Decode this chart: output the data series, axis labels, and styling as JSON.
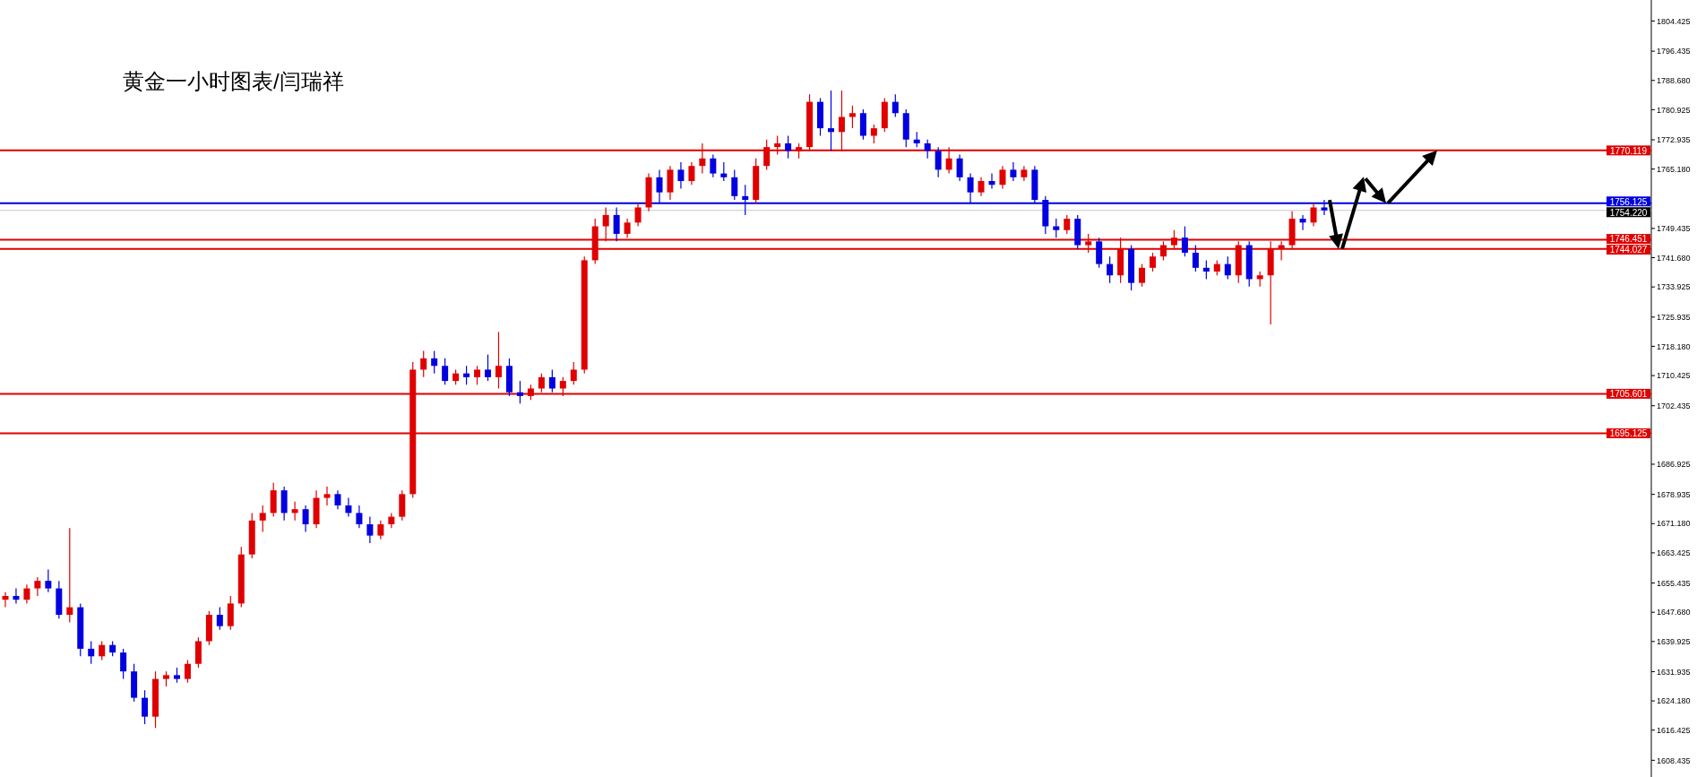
{
  "chart_data": {
    "type": "candlestick",
    "title": "黄金一小时图表/闫瑞祥",
    "categories": [
      null,
      null,
      null,
      null,
      null,
      null,
      null,
      null,
      null,
      null,
      null,
      null,
      null,
      null,
      null,
      null,
      null,
      null,
      null,
      null,
      null,
      null,
      null,
      null,
      null,
      null,
      null,
      null,
      null,
      null,
      null,
      null,
      null,
      null,
      null,
      null,
      null,
      null,
      null,
      null,
      null,
      null,
      null,
      null,
      null,
      null,
      null,
      null,
      null,
      null,
      null,
      null,
      null,
      null,
      null,
      null,
      null,
      null,
      null,
      null,
      null,
      null,
      null,
      null,
      null,
      null,
      null,
      null,
      null,
      null,
      null,
      null,
      null,
      null,
      null,
      null,
      null,
      null,
      null,
      null,
      null,
      null,
      null,
      null,
      null,
      null,
      null,
      null,
      null,
      null,
      null,
      null,
      null,
      null,
      null,
      null,
      null,
      null,
      null,
      null,
      null,
      null,
      null,
      null,
      null,
      null,
      null,
      null,
      null,
      null,
      null,
      null,
      null,
      null,
      null,
      null,
      null,
      null,
      null,
      null,
      null,
      null,
      null,
      null,
      null,
      null,
      null,
      null,
      null,
      null,
      null,
      null,
      null,
      null,
      null,
      null,
      null,
      null,
      null,
      null,
      null,
      null,
      null,
      null,
      null,
      null,
      null,
      null,
      null,
      null,
      null,
      null,
      null,
      null
    ],
    "legend": false,
    "ohlc": [
      [
        1651,
        1653,
        1649,
        1652
      ],
      [
        1652,
        1654,
        1650,
        1651
      ],
      [
        1651,
        1655,
        1650,
        1654
      ],
      [
        1654,
        1657,
        1652,
        1656
      ],
      [
        1656,
        1659,
        1653,
        1654
      ],
      [
        1654,
        1656,
        1646,
        1647
      ],
      [
        1647,
        1670,
        1645,
        1649
      ],
      [
        1649,
        1650,
        1636,
        1638
      ],
      [
        1638,
        1640,
        1634,
        1636
      ],
      [
        1636,
        1640,
        1635,
        1639
      ],
      [
        1639,
        1640,
        1636,
        1637
      ],
      [
        1637,
        1638,
        1630,
        1632
      ],
      [
        1632,
        1634,
        1624,
        1625
      ],
      [
        1625,
        1627,
        1618,
        1620
      ],
      [
        1620,
        1632,
        1617,
        1630
      ],
      [
        1630,
        1632,
        1628,
        1631
      ],
      [
        1631,
        1633,
        1629,
        1630
      ],
      [
        1630,
        1635,
        1629,
        1634
      ],
      [
        1634,
        1641,
        1633,
        1640
      ],
      [
        1640,
        1648,
        1639,
        1647
      ],
      [
        1647,
        1649,
        1643,
        1644
      ],
      [
        1644,
        1652,
        1643,
        1650
      ],
      [
        1650,
        1665,
        1649,
        1663
      ],
      [
        1663,
        1674,
        1662,
        1672
      ],
      [
        1672,
        1676,
        1669,
        1674
      ],
      [
        1674,
        1682,
        1673,
        1680
      ],
      [
        1680,
        1681,
        1672,
        1674
      ],
      [
        1674,
        1677,
        1672,
        1675
      ],
      [
        1675,
        1676,
        1669,
        1671
      ],
      [
        1671,
        1680,
        1670,
        1678
      ],
      [
        1678,
        1681,
        1676,
        1679
      ],
      [
        1679,
        1680,
        1675,
        1676
      ],
      [
        1676,
        1678,
        1673,
        1674
      ],
      [
        1674,
        1676,
        1670,
        1671
      ],
      [
        1671,
        1673,
        1666,
        1668
      ],
      [
        1668,
        1672,
        1667,
        1671
      ],
      [
        1671,
        1674,
        1670,
        1673
      ],
      [
        1673,
        1680,
        1672,
        1679
      ],
      [
        1679,
        1714,
        1678,
        1712
      ],
      [
        1712,
        1717,
        1710,
        1715
      ],
      [
        1715,
        1717,
        1711,
        1713
      ],
      [
        1713,
        1715,
        1708,
        1709
      ],
      [
        1709,
        1712,
        1708,
        1711
      ],
      [
        1711,
        1713,
        1708,
        1710
      ],
      [
        1710,
        1713,
        1708,
        1712
      ],
      [
        1712,
        1716,
        1709,
        1710
      ],
      [
        1710,
        1722,
        1707,
        1713
      ],
      [
        1713,
        1715,
        1705,
        1706
      ],
      [
        1706,
        1709,
        1703,
        1705
      ],
      [
        1705,
        1708,
        1704,
        1707
      ],
      [
        1707,
        1711,
        1706,
        1710
      ],
      [
        1710,
        1712,
        1706,
        1707
      ],
      [
        1707,
        1710,
        1705,
        1709
      ],
      [
        1709,
        1714,
        1708,
        1712
      ],
      [
        1712,
        1742,
        1711,
        1741
      ],
      [
        1741,
        1752,
        1740,
        1750
      ],
      [
        1750,
        1755,
        1746,
        1753
      ],
      [
        1753,
        1755,
        1746,
        1748
      ],
      [
        1748,
        1752,
        1747,
        1751
      ],
      [
        1751,
        1756,
        1750,
        1755
      ],
      [
        1755,
        1764,
        1754,
        1763
      ],
      [
        1763,
        1765,
        1756,
        1759
      ],
      [
        1759,
        1766,
        1757,
        1765
      ],
      [
        1765,
        1767,
        1760,
        1762
      ],
      [
        1762,
        1767,
        1761,
        1766
      ],
      [
        1766,
        1772,
        1764,
        1768
      ],
      [
        1768,
        1769,
        1763,
        1764
      ],
      [
        1764,
        1767,
        1762,
        1763
      ],
      [
        1763,
        1765,
        1757,
        1758
      ],
      [
        1758,
        1761,
        1753,
        1757
      ],
      [
        1757,
        1768,
        1756,
        1766
      ],
      [
        1766,
        1773,
        1765,
        1771
      ],
      [
        1771,
        1774,
        1769,
        1772
      ],
      [
        1772,
        1774,
        1768,
        1770
      ],
      [
        1770,
        1772,
        1768,
        1771
      ],
      [
        1771,
        1785,
        1770,
        1783
      ],
      [
        1783,
        1784,
        1774,
        1776
      ],
      [
        1776,
        1786,
        1770,
        1775
      ],
      [
        1775,
        1786,
        1770,
        1779
      ],
      [
        1779,
        1782,
        1776,
        1780
      ],
      [
        1780,
        1781,
        1773,
        1774
      ],
      [
        1774,
        1777,
        1772,
        1776
      ],
      [
        1776,
        1784,
        1775,
        1783
      ],
      [
        1783,
        1785,
        1779,
        1780
      ],
      [
        1780,
        1781,
        1771,
        1773
      ],
      [
        1773,
        1775,
        1771,
        1772
      ],
      [
        1772,
        1773,
        1768,
        1770
      ],
      [
        1770,
        1771,
        1763,
        1765
      ],
      [
        1765,
        1771,
        1764,
        1768
      ],
      [
        1768,
        1769,
        1762,
        1763
      ],
      [
        1763,
        1764,
        1756,
        1759
      ],
      [
        1759,
        1763,
        1758,
        1762
      ],
      [
        1762,
        1764,
        1760,
        1761
      ],
      [
        1761,
        1766,
        1760,
        1765
      ],
      [
        1765,
        1767,
        1762,
        1763
      ],
      [
        1763,
        1766,
        1762,
        1765
      ],
      [
        1765,
        1766,
        1756,
        1757
      ],
      [
        1757,
        1758,
        1748,
        1750
      ],
      [
        1750,
        1752,
        1747,
        1749
      ],
      [
        1749,
        1753,
        1748,
        1752
      ],
      [
        1752,
        1753,
        1744,
        1745
      ],
      [
        1745,
        1748,
        1743,
        1746
      ],
      [
        1746,
        1747,
        1739,
        1740
      ],
      [
        1740,
        1742,
        1735,
        1737
      ],
      [
        1737,
        1747,
        1735,
        1744
      ],
      [
        1744,
        1745,
        1733,
        1735
      ],
      [
        1735,
        1740,
        1734,
        1739
      ],
      [
        1739,
        1743,
        1738,
        1742
      ],
      [
        1742,
        1746,
        1741,
        1745
      ],
      [
        1745,
        1749,
        1744,
        1747
      ],
      [
        1747,
        1750,
        1742,
        1743
      ],
      [
        1743,
        1745,
        1738,
        1739
      ],
      [
        1739,
        1741,
        1736,
        1738
      ],
      [
        1738,
        1741,
        1737,
        1740
      ],
      [
        1740,
        1742,
        1736,
        1737
      ],
      [
        1737,
        1746,
        1735,
        1745
      ],
      [
        1745,
        1746,
        1734,
        1736
      ],
      [
        1736,
        1738,
        1734,
        1737
      ],
      [
        1737,
        1746,
        1724,
        1744
      ],
      [
        1744,
        1746,
        1741,
        1745
      ],
      [
        1745,
        1754,
        1744,
        1752
      ],
      [
        1752,
        1753,
        1749,
        1751
      ],
      [
        1751,
        1756,
        1750,
        1755
      ],
      [
        1755,
        1757,
        1753,
        1754.22
      ],
      null,
      null,
      null,
      null,
      null,
      null,
      null,
      null,
      null,
      null,
      null,
      null,
      null,
      null,
      null,
      null,
      null,
      null,
      null,
      null,
      null,
      null,
      null,
      null,
      null,
      null,
      null,
      null,
      null,
      null
    ],
    "ylim": [
      1604,
      1810
    ],
    "yticks": [
      1608.435,
      1616.425,
      {
        "value": 1624.18,
        "label": "1624.180"
      },
      1631.935,
      1639.925,
      {
        "value": 1647.68,
        "label": "1647.680"
      },
      1655.435,
      1663.425,
      {
        "value": 1671.18,
        "label": "1671.180"
      },
      1678.935,
      1686.925,
      1702.435,
      1710.425,
      {
        "value": 1718.18,
        "label": "1718.180"
      },
      1725.935,
      1733.925,
      {
        "value": 1741.68,
        "label": "1741.680"
      },
      1749.435,
      {
        "value": 1765.18,
        "label": "1765.180"
      },
      1772.935,
      1780.925,
      {
        "value": 1788.68,
        "label": "1788.680"
      },
      1796.435,
      1804.425
    ],
    "tick_labels": "y",
    "grid": false,
    "ref_lines": [
      {
        "axis": "y",
        "value": 1770.119,
        "label": "1770.119",
        "color": "#e00000"
      },
      {
        "axis": "y",
        "value": 1756.125,
        "label": "1756.125",
        "color": "#0000e0"
      },
      {
        "axis": "y",
        "value": 1754.22,
        "label": "1754.220",
        "color": "#c8c8c8"
      },
      {
        "axis": "y",
        "value": 1746.451,
        "label": "1746.451",
        "color": "#e00000"
      },
      {
        "axis": "y",
        "value": 1744.027,
        "label": "1744.027",
        "color": "#e00000"
      },
      {
        "axis": "y",
        "value": 1705.601,
        "label": "1705.601",
        "color": "#e00000"
      },
      {
        "axis": "y",
        "value": 1695.125,
        "label": "1695.125",
        "color": "#e00000"
      }
    ]
  }
}
